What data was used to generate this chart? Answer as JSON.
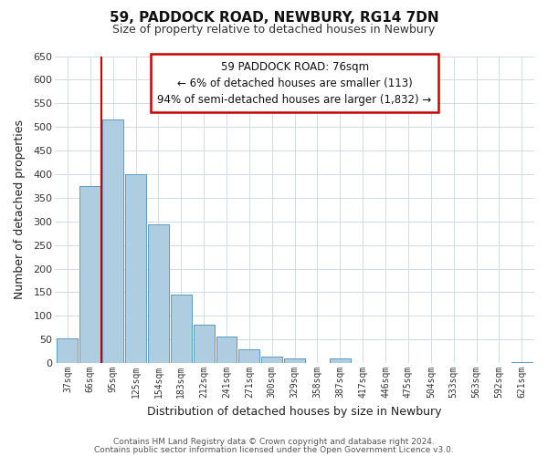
{
  "title": "59, PADDOCK ROAD, NEWBURY, RG14 7DN",
  "subtitle": "Size of property relative to detached houses in Newbury",
  "xlabel": "Distribution of detached houses by size in Newbury",
  "ylabel": "Number of detached properties",
  "bar_labels": [
    "37sqm",
    "66sqm",
    "95sqm",
    "125sqm",
    "154sqm",
    "183sqm",
    "212sqm",
    "241sqm",
    "271sqm",
    "300sqm",
    "329sqm",
    "358sqm",
    "387sqm",
    "417sqm",
    "446sqm",
    "475sqm",
    "504sqm",
    "533sqm",
    "563sqm",
    "592sqm",
    "621sqm"
  ],
  "bar_heights": [
    52,
    375,
    515,
    400,
    293,
    145,
    82,
    57,
    30,
    13,
    10,
    0,
    10,
    0,
    0,
    0,
    0,
    0,
    0,
    0,
    2
  ],
  "bar_color": "#aecde0",
  "bar_edge_color": "#5b9dc0",
  "vline_color": "#cc0000",
  "ylim": [
    0,
    650
  ],
  "yticks": [
    0,
    50,
    100,
    150,
    200,
    250,
    300,
    350,
    400,
    450,
    500,
    550,
    600,
    650
  ],
  "annotation_title": "59 PADDOCK ROAD: 76sqm",
  "annotation_line1": "← 6% of detached houses are smaller (113)",
  "annotation_line2": "94% of semi-detached houses are larger (1,832) →",
  "annotation_box_color": "#ffffff",
  "annotation_border_color": "#cc0000",
  "footer_line1": "Contains HM Land Registry data © Crown copyright and database right 2024.",
  "footer_line2": "Contains public sector information licensed under the Open Government Licence v3.0.",
  "background_color": "#ffffff",
  "grid_color": "#d0dcea"
}
